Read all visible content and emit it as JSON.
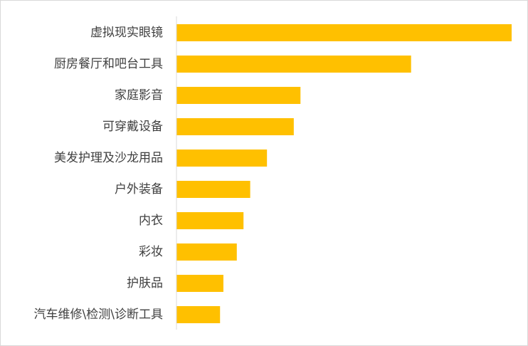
{
  "chart_data": {
    "type": "bar",
    "orientation": "horizontal",
    "categories": [
      "虚拟现实眼镜",
      "厨房餐厅和吧台工具",
      "家庭影音",
      "可穿戴设备",
      "美发护理及沙龙用品",
      "户外装备",
      "内衣",
      "彩妆",
      "护肤品",
      "汽车维修\\检测\\诊断工具"
    ],
    "values": [
      100,
      70,
      37,
      35,
      27,
      22,
      20,
      18,
      14,
      13
    ],
    "xlim": [
      0,
      100
    ],
    "grid": false,
    "legend": "none",
    "bar_color": "#FFC000",
    "axis_color": "#d9d9d9",
    "label_color": "#404040"
  }
}
